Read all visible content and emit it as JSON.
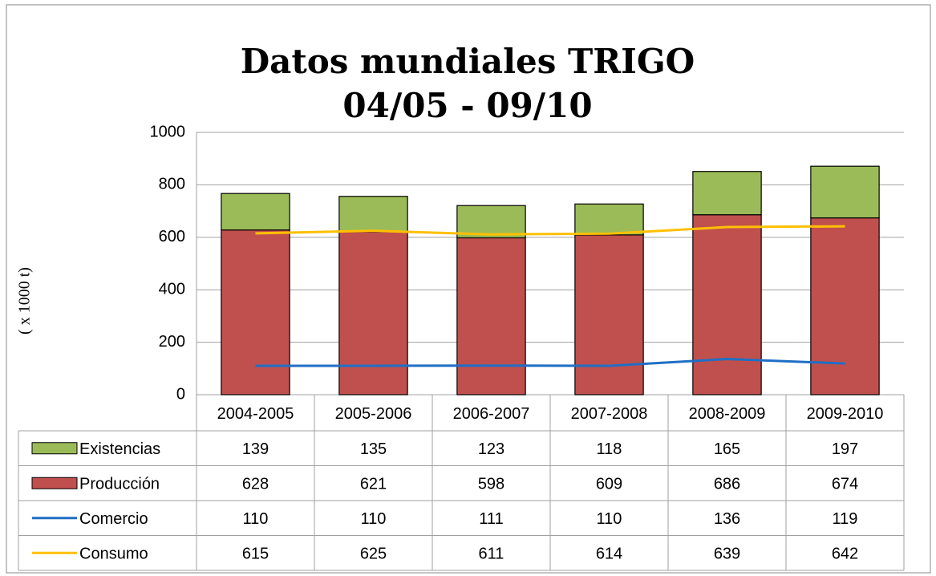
{
  "chart_data": {
    "type": "bar",
    "title": "Datos mundiales TRIGO",
    "subtitle": "04/05 - 09/10",
    "y_label": "( x 1000 t)",
    "categories": [
      "2004-2005",
      "2005-2006",
      "2006-2007",
      "2007-2008",
      "2008-2009",
      "2009-2010"
    ],
    "stacked": true,
    "series": [
      {
        "name": "Existencias",
        "type": "bar",
        "color": "#9bbb59",
        "values": [
          139,
          135,
          123,
          118,
          165,
          197
        ]
      },
      {
        "name": "Producción",
        "type": "bar",
        "color": "#c0504d",
        "values": [
          628,
          621,
          598,
          609,
          686,
          674
        ]
      },
      {
        "name": "Comercio",
        "type": "line",
        "color": "#1f6fc5",
        "values": [
          110,
          110,
          111,
          110,
          136,
          119
        ]
      },
      {
        "name": "Consumo",
        "type": "line",
        "color": "#ffc000",
        "values": [
          615,
          625,
          611,
          614,
          639,
          642
        ]
      }
    ],
    "ylim": [
      0,
      1000
    ],
    "yticks": [
      0,
      200,
      400,
      600,
      800,
      1000
    ],
    "grid": true
  }
}
